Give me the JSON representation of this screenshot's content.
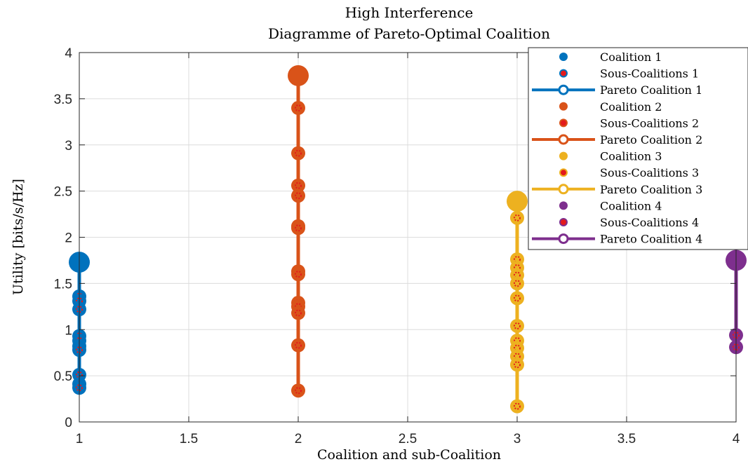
{
  "chart_data": {
    "type": "scatter",
    "title": "High Interference",
    "subtitle": "Diagramme of Pareto-Optimal Coalition",
    "xlabel": "Coalition and sub-Coalition",
    "ylabel": "Utility [bits/s/Hz]",
    "xlim": [
      1,
      4
    ],
    "ylim": [
      0,
      4
    ],
    "x_ticks": [
      1,
      1.5,
      2,
      2.5,
      3,
      3.5,
      4
    ],
    "x_tick_labels": [
      "1",
      "1.5",
      "2",
      "2.5",
      "3",
      "3.5",
      "4"
    ],
    "y_ticks": [
      0,
      0.5,
      1,
      1.5,
      2,
      2.5,
      3,
      3.5,
      4
    ],
    "y_tick_labels": [
      "0",
      "0.5",
      "1",
      "1.5",
      "2",
      "2.5",
      "3",
      "3.5",
      "4"
    ],
    "grid": true,
    "legend_position": "top-right",
    "subcoalition_color": "#e31a1c",
    "series": [
      {
        "coalition_label": "Coalition 1",
        "subcoalitions_label": "Sous-Coalitions 1",
        "pareto_label": "Pareto Coalition 1",
        "color": "#0072bd",
        "x": 1,
        "pareto_value": 1.73,
        "subcoalition_values": [
          1.36,
          1.31,
          1.22,
          0.93,
          0.88,
          0.82,
          0.78,
          0.51,
          0.41,
          0.37
        ]
      },
      {
        "coalition_label": "Coalition 2",
        "subcoalitions_label": "Sous-Coalitions 2",
        "pareto_label": "Pareto Coalition 2",
        "color": "#d95319",
        "x": 2,
        "pareto_value": 3.75,
        "subcoalition_values": [
          3.4,
          2.91,
          2.56,
          2.45,
          2.12,
          2.1,
          1.63,
          1.6,
          1.29,
          1.25,
          1.18,
          0.83,
          0.34
        ]
      },
      {
        "coalition_label": "Coalition 3",
        "subcoalitions_label": "Sous-Coalitions 3",
        "pareto_label": "Pareto Coalition 3",
        "color": "#edb120",
        "x": 3,
        "pareto_value": 2.39,
        "subcoalition_values": [
          2.21,
          1.76,
          1.67,
          1.59,
          1.5,
          1.34,
          1.04,
          0.88,
          0.8,
          0.71,
          0.62,
          0.17
        ]
      },
      {
        "coalition_label": "Coalition 4",
        "subcoalitions_label": "Sous-Coalitions 4",
        "pareto_label": "Pareto Coalition 4",
        "color": "#7e2f8e",
        "x": 4,
        "pareto_value": 1.75,
        "subcoalition_values": [
          0.94,
          0.81
        ]
      }
    ]
  }
}
